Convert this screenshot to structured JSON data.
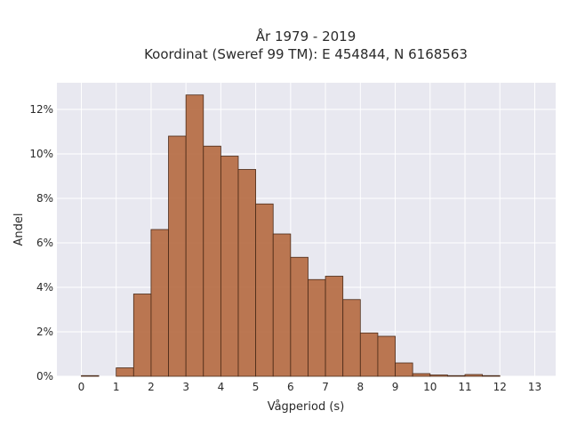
{
  "chart_data": {
    "type": "bar",
    "title_lines": [
      "År 1979 - 2019",
      "Koordinat (Sweref 99 TM): E 454844, N 6168563"
    ],
    "xlabel": "Vågperiod (s)",
    "ylabel": "Andel",
    "x_ticks": [
      "0",
      "1",
      "2",
      "3",
      "4",
      "5",
      "6",
      "7",
      "8",
      "9",
      "10",
      "11",
      "12",
      "13"
    ],
    "y_ticks": [
      "0%",
      "2%",
      "4%",
      "6%",
      "8%",
      "10%",
      "12%"
    ],
    "xlim": [
      -0.7,
      13.6
    ],
    "ylim": [
      0,
      13.2
    ],
    "bin_width": 0.5,
    "bins": [
      {
        "start": 0.0,
        "value": 0.03
      },
      {
        "start": 0.5,
        "value": 0.0
      },
      {
        "start": 1.0,
        "value": 0.38
      },
      {
        "start": 1.5,
        "value": 3.7
      },
      {
        "start": 2.0,
        "value": 6.6
      },
      {
        "start": 2.5,
        "value": 10.8
      },
      {
        "start": 3.0,
        "value": 12.65
      },
      {
        "start": 3.5,
        "value": 10.35
      },
      {
        "start": 4.0,
        "value": 9.9
      },
      {
        "start": 4.5,
        "value": 9.3
      },
      {
        "start": 5.0,
        "value": 7.75
      },
      {
        "start": 5.5,
        "value": 6.4
      },
      {
        "start": 6.0,
        "value": 5.35
      },
      {
        "start": 6.5,
        "value": 4.35
      },
      {
        "start": 7.0,
        "value": 4.5
      },
      {
        "start": 7.5,
        "value": 3.45
      },
      {
        "start": 8.0,
        "value": 1.95
      },
      {
        "start": 8.5,
        "value": 1.8
      },
      {
        "start": 9.0,
        "value": 0.6
      },
      {
        "start": 9.5,
        "value": 0.12
      },
      {
        "start": 10.0,
        "value": 0.06
      },
      {
        "start": 10.5,
        "value": 0.03
      },
      {
        "start": 11.0,
        "value": 0.08
      },
      {
        "start": 11.5,
        "value": 0.03
      }
    ],
    "grid": true,
    "colors": {
      "bar_fill": "#b5693f",
      "bar_stroke": "#4a2a18",
      "plot_background": "#e8e8f0",
      "grid": "#ffffff"
    }
  }
}
